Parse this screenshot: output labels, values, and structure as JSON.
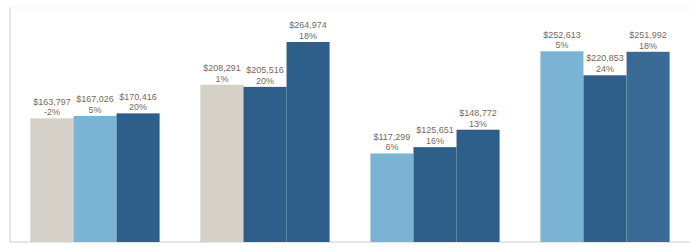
{
  "chart_data": {
    "type": "bar",
    "categories": [
      null,
      null,
      null,
      null
    ],
    "series": [
      {
        "values": [
          163797,
          208291,
          117299,
          252613
        ],
        "value_labels": [
          "$163,797\n-2%",
          "$208,291\n1%",
          "$117,299\n6%",
          "$252,613\n5%"
        ],
        "colors": [
          "#d5d0c8",
          "#d5d0c8",
          "#7ab3d4",
          "#7ab3d4"
        ]
      },
      {
        "values": [
          167026,
          205516,
          125651,
          220853
        ],
        "value_labels": [
          "$167,026\n5%",
          "$205,516\n20%",
          "$125,651\n16%",
          "$220,853\n24%"
        ],
        "colors": [
          "#7ab3d4",
          "#2e5f8a",
          "#2e5f8a",
          "#2e5f8a"
        ]
      },
      {
        "values": [
          170416,
          264974,
          148772,
          251992
        ],
        "value_labels": [
          "$170,416\n20%",
          "$264,974\n18%",
          "$148,772\n13%",
          "$251,992\n18%"
        ],
        "colors": [
          "#2e5f8a",
          "#2e5f8a",
          "#2e5f8a",
          "#3a6b96"
        ]
      }
    ],
    "ylim": [
      0,
      310000
    ],
    "grid": false,
    "tick_labels": false,
    "data_labels": true
  }
}
